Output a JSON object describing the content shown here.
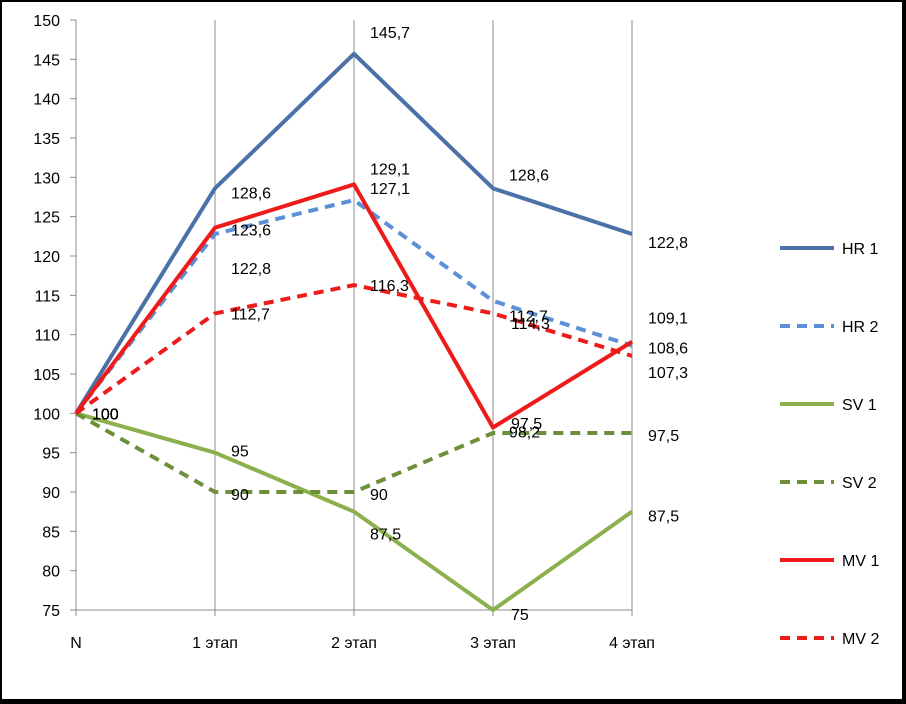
{
  "chart_data": {
    "type": "line",
    "categories": [
      "N",
      "1 этап",
      "2 этап",
      "3 этап",
      "4 этап"
    ],
    "ylim": [
      75,
      150
    ],
    "y_ticks": [
      75,
      80,
      85,
      90,
      95,
      100,
      105,
      110,
      115,
      120,
      125,
      130,
      135,
      140,
      145,
      150
    ],
    "y_tick_labels": [
      "75",
      "80",
      "85",
      "90",
      "95",
      "100",
      "105",
      "110",
      "115",
      "120",
      "125",
      "130",
      "135",
      "140",
      "145",
      "150"
    ],
    "grid": "vertical",
    "legend_position": "right",
    "series": [
      {
        "name": "HR 1",
        "values": [
          100,
          128.6,
          145.7,
          128.6,
          122.8
        ],
        "labels": [
          "100",
          "128,6",
          "145,7",
          "128,6",
          "122,8"
        ],
        "color": "#4a72a8",
        "style": "solid"
      },
      {
        "name": "HR 2",
        "values": [
          100,
          122.8,
          127.1,
          114.3,
          108.6
        ],
        "labels": [
          "100",
          "122,8",
          "127,1",
          "114,3",
          "108,6"
        ],
        "color": "#5b8fd6",
        "style": "dashed"
      },
      {
        "name": "SV 1",
        "values": [
          100,
          95,
          87.5,
          75,
          87.5
        ],
        "labels": [
          "100",
          "95",
          "87,5",
          "75",
          "87,5"
        ],
        "color": "#8db04e",
        "style": "solid"
      },
      {
        "name": "SV 2",
        "values": [
          100,
          90,
          90,
          97.5,
          97.5
        ],
        "labels": [
          "100",
          "90",
          "90",
          "97,5",
          "97,5"
        ],
        "color": "#6e8f3a",
        "style": "dashed"
      },
      {
        "name": "MV 1",
        "values": [
          100,
          123.6,
          129.1,
          98.2,
          109.1
        ],
        "labels": [
          "100",
          "123,6",
          "129,1",
          "98,2",
          "109,1"
        ],
        "color": "#ee1b1b",
        "style": "solid"
      },
      {
        "name": "MV 2",
        "values": [
          100,
          112.7,
          116.3,
          112.7,
          107.3
        ],
        "labels": [
          "100",
          "112,7",
          "116,3",
          "112,7",
          "107,3"
        ],
        "color": "#ee1b1b",
        "style": "dashed"
      }
    ]
  }
}
